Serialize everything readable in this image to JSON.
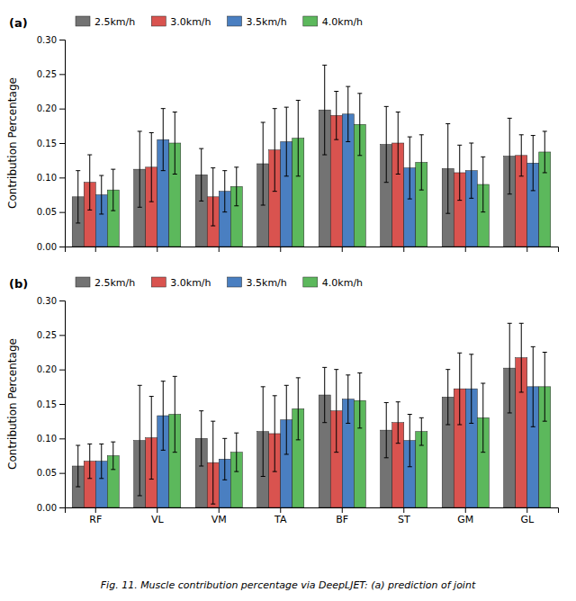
{
  "chart_data": [
    {
      "type": "bar",
      "title": "(a)",
      "y_label": "Contribution Percentage",
      "categories": [
        null,
        null,
        null,
        null,
        null,
        null,
        null,
        null
      ],
      "series": [
        {
          "name": "2.5km/h",
          "color": "#737373",
          "values": [
            0.072,
            0.112,
            0.104,
            0.12,
            0.198,
            0.148,
            0.113,
            0.131
          ],
          "errors": [
            0.038,
            0.055,
            0.038,
            0.06,
            0.065,
            0.055,
            0.065,
            0.055
          ]
        },
        {
          "name": "3.0km/h",
          "color": "#d9534f",
          "values": [
            0.093,
            0.115,
            0.072,
            0.14,
            0.19,
            0.15,
            0.107,
            0.132
          ],
          "errors": [
            0.04,
            0.05,
            0.042,
            0.06,
            0.035,
            0.045,
            0.04,
            0.03
          ]
        },
        {
          "name": "3.5km/h",
          "color": "#4a7fc1",
          "values": [
            0.075,
            0.155,
            0.08,
            0.152,
            0.192,
            0.114,
            0.11,
            0.121
          ],
          "errors": [
            0.028,
            0.045,
            0.03,
            0.05,
            0.04,
            0.045,
            0.04,
            0.04
          ]
        },
        {
          "name": "4.0km/h",
          "color": "#5cb85c",
          "values": [
            0.082,
            0.15,
            0.087,
            0.157,
            0.177,
            0.122,
            0.09,
            0.137
          ],
          "errors": [
            0.03,
            0.045,
            0.028,
            0.055,
            0.045,
            0.04,
            0.04,
            0.03
          ]
        }
      ],
      "ylim": [
        0.0,
        0.3
      ],
      "yticks": [
        {
          "value": 0.0,
          "label": "0.00"
        },
        0.05,
        {
          "value": 0.1,
          "label": "0.10"
        },
        0.15,
        {
          "value": 0.2,
          "label": "0.20"
        },
        0.25,
        {
          "value": 0.3,
          "label": "0.30"
        }
      ],
      "grid": false,
      "legend": "top"
    },
    {
      "type": "bar",
      "title": "(b)",
      "y_label": "Contribution Percentage",
      "categories": [
        "RF",
        "VL",
        "VM",
        "TA",
        "BF",
        "ST",
        "GM",
        "GL"
      ],
      "series": [
        {
          "name": "2.5km/h",
          "color": "#737373",
          "values": [
            0.06,
            0.097,
            0.1,
            0.11,
            0.163,
            0.112,
            0.16,
            0.202
          ],
          "errors": [
            0.03,
            0.08,
            0.04,
            0.065,
            0.04,
            0.04,
            0.04,
            0.065
          ]
        },
        {
          "name": "3.0km/h",
          "color": "#d9534f",
          "values": [
            0.067,
            0.101,
            0.065,
            0.107,
            0.14,
            0.123,
            0.172,
            0.217
          ],
          "errors": [
            0.025,
            0.06,
            0.06,
            0.055,
            0.06,
            0.03,
            0.052,
            0.05
          ]
        },
        {
          "name": "3.5km/h",
          "color": "#4a7fc1",
          "values": [
            0.067,
            0.133,
            0.07,
            0.127,
            0.157,
            0.097,
            0.172,
            0.175
          ],
          "errors": [
            0.025,
            0.05,
            0.03,
            0.05,
            0.035,
            0.038,
            0.05,
            0.058
          ]
        },
        {
          "name": "4.0km/h",
          "color": "#5cb85c",
          "values": [
            0.075,
            0.135,
            0.08,
            0.143,
            0.155,
            0.11,
            0.13,
            0.175
          ],
          "errors": [
            0.02,
            0.055,
            0.028,
            0.045,
            0.04,
            0.02,
            0.05,
            0.05
          ]
        }
      ],
      "ylim": [
        0.0,
        0.3
      ],
      "yticks": [
        {
          "value": 0.0,
          "label": "0.00"
        },
        0.05,
        {
          "value": 0.1,
          "label": "0.10"
        },
        0.15,
        {
          "value": 0.2,
          "label": "0.20"
        },
        0.25,
        {
          "value": 0.3,
          "label": "0.30"
        }
      ],
      "grid": false,
      "legend": "top",
      "annotations": [
        "Fig. 11. Muscle contribution percentage via DeepLJET: (a) prediction of joint"
      ]
    }
  ]
}
